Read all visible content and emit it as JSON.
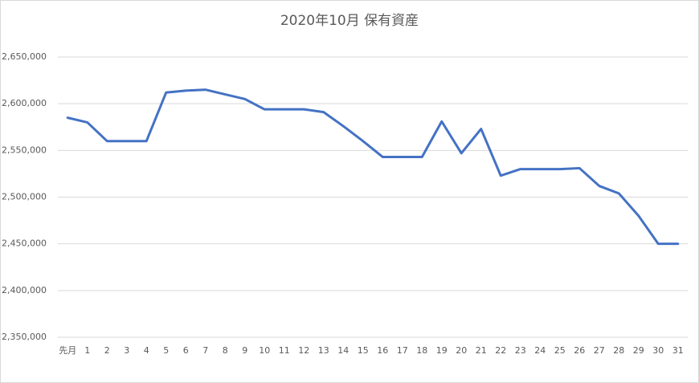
{
  "chart_data": {
    "type": "line",
    "title": "2020年10月 保有資産",
    "categories": [
      "先月",
      "1",
      "2",
      "3",
      "4",
      "5",
      "6",
      "7",
      "8",
      "9",
      "10",
      "11",
      "12",
      "13",
      "14",
      "15",
      "16",
      "17",
      "18",
      "19",
      "20",
      "21",
      "22",
      "23",
      "24",
      "25",
      "26",
      "27",
      "28",
      "29",
      "30",
      "31"
    ],
    "series": [
      {
        "name": "保有資産",
        "color": "#4472c4",
        "values": [
          2585000,
          2580000,
          2560000,
          2560000,
          2560000,
          2612000,
          2614000,
          2615000,
          2610000,
          2605000,
          2594000,
          2594000,
          2594000,
          2591000,
          2576000,
          2560000,
          2543000,
          2543000,
          2543000,
          2581000,
          2547000,
          2573000,
          2523000,
          2530000,
          2530000,
          2530000,
          2531000,
          2512000,
          2504000,
          2480000,
          2450000,
          2450000
        ]
      }
    ],
    "ylim": [
      2350000,
      2650000
    ],
    "yticks": [
      {
        "value": 2350000,
        "label": "2,350,000"
      },
      {
        "value": 2400000,
        "label": "2,400,000"
      },
      {
        "value": 2450000,
        "label": "2,450,000"
      },
      {
        "value": 2500000,
        "label": "2,500,000"
      },
      {
        "value": 2550000,
        "label": "2,550,000"
      },
      {
        "value": 2600000,
        "label": "2,600,000"
      },
      {
        "value": 2650000,
        "label": "2,650,000"
      }
    ],
    "grid": true
  }
}
